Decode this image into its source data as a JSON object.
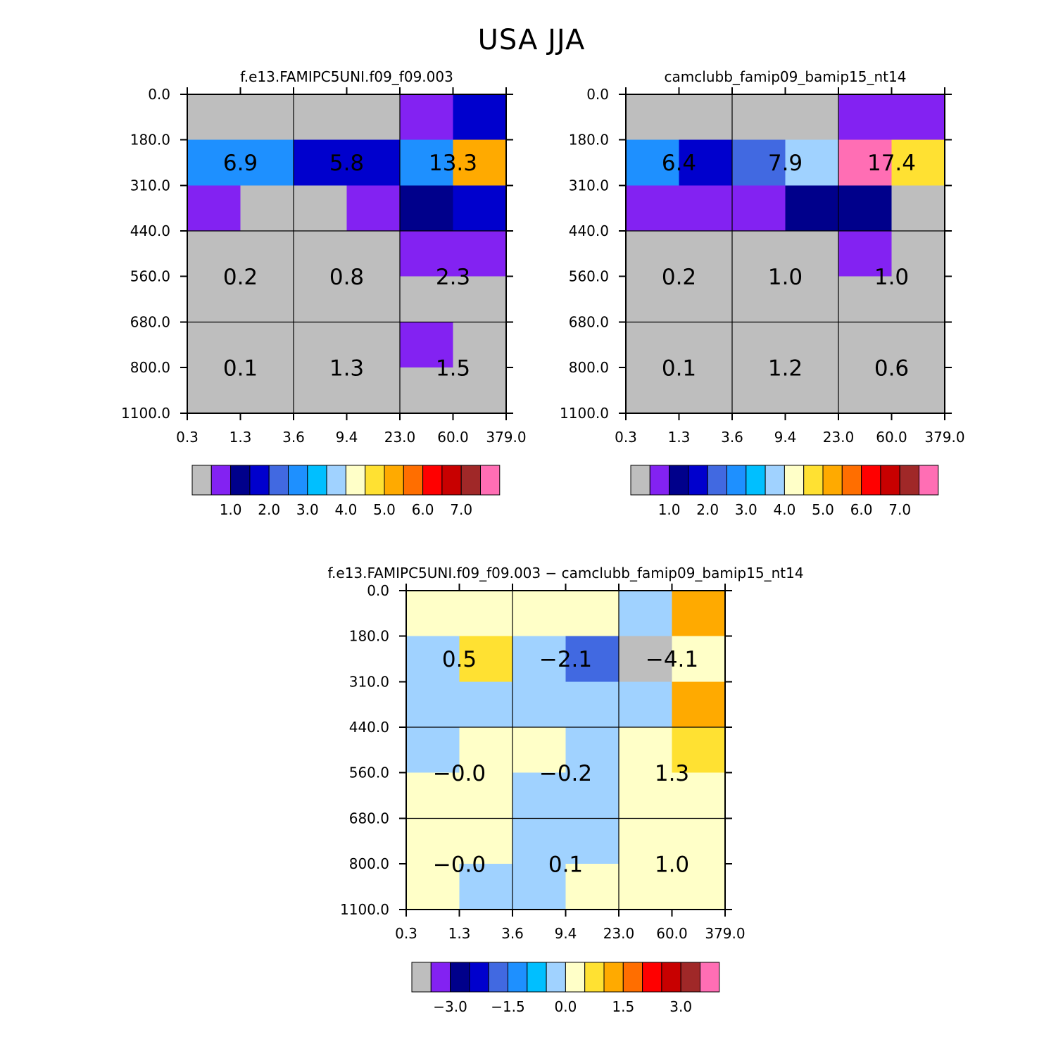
{
  "page_title": "USA JJA",
  "colors": {
    "missing": "#bebebe",
    "palette": [
      "#bebebe",
      "#8322f2",
      "#00008b",
      "#0000cd",
      "#4169e1",
      "#1e90ff",
      "#00bfff",
      "#a0d2ff",
      "#ffffc8",
      "#ffe132",
      "#ffaa00",
      "#ff6e00",
      "#ff0000",
      "#c80000",
      "#a02828",
      "#ff6eb4"
    ]
  },
  "chart_data": [
    {
      "type": "heatmap",
      "title": "f.e13.FAMIPC5UNI.f09_f09.003",
      "x_ticks": [
        "0.3",
        "1.3",
        "3.6",
        "9.4",
        "23.0",
        "60.0",
        "379.0"
      ],
      "y_ticks": [
        "0.0",
        "180.0",
        "310.0",
        "440.0",
        "560.0",
        "680.0",
        "800.0",
        "1100.0"
      ],
      "cell_color_index": [
        [
          0,
          0,
          0,
          0,
          1,
          3
        ],
        [
          5,
          5,
          3,
          3,
          5,
          10
        ],
        [
          1,
          0,
          0,
          1,
          2,
          3
        ],
        [
          0,
          0,
          0,
          0,
          1,
          1
        ],
        [
          0,
          0,
          0,
          0,
          0,
          0
        ],
        [
          0,
          0,
          0,
          0,
          1,
          0
        ],
        [
          0,
          0,
          0,
          0,
          0,
          0
        ]
      ],
      "block_labels": [
        [
          "6.9",
          "5.8",
          "13.3"
        ],
        [
          "0.2",
          "0.8",
          "2.3"
        ],
        [
          "0.1",
          "1.3",
          "1.5"
        ]
      ],
      "colorbar": {
        "n_boxes": 16,
        "labels": [
          "1.0",
          "2.0",
          "3.0",
          "4.0",
          "5.0",
          "6.0",
          "7.0"
        ],
        "label_box_edges": [
          2,
          4,
          6,
          8,
          10,
          12,
          14
        ]
      }
    },
    {
      "type": "heatmap",
      "title": "camclubb_famip09_bamip15_nt14",
      "x_ticks": [
        "0.3",
        "1.3",
        "3.6",
        "9.4",
        "23.0",
        "60.0",
        "379.0"
      ],
      "y_ticks": [
        "0.0",
        "180.0",
        "310.0",
        "440.0",
        "560.0",
        "680.0",
        "800.0",
        "1100.0"
      ],
      "cell_color_index": [
        [
          0,
          0,
          0,
          0,
          1,
          1
        ],
        [
          5,
          3,
          4,
          7,
          15,
          9
        ],
        [
          1,
          1,
          1,
          2,
          2,
          0
        ],
        [
          0,
          0,
          0,
          0,
          1,
          0
        ],
        [
          0,
          0,
          0,
          0,
          0,
          0
        ],
        [
          0,
          0,
          0,
          0,
          0,
          0
        ],
        [
          0,
          0,
          0,
          0,
          0,
          0
        ]
      ],
      "block_labels": [
        [
          "6.4",
          "7.9",
          "17.4"
        ],
        [
          "0.2",
          "1.0",
          "1.0"
        ],
        [
          "0.1",
          "1.2",
          "0.6"
        ]
      ],
      "colorbar": {
        "n_boxes": 16,
        "labels": [
          "1.0",
          "2.0",
          "3.0",
          "4.0",
          "5.0",
          "6.0",
          "7.0"
        ],
        "label_box_edges": [
          2,
          4,
          6,
          8,
          10,
          12,
          14
        ]
      }
    },
    {
      "type": "heatmap",
      "title": "f.e13.FAMIPC5UNI.f09_f09.003 − camclubb_famip09_bamip15_nt14",
      "x_ticks": [
        "0.3",
        "1.3",
        "3.6",
        "9.4",
        "23.0",
        "60.0",
        "379.0"
      ],
      "y_ticks": [
        "0.0",
        "180.0",
        "310.0",
        "440.0",
        "560.0",
        "680.0",
        "800.0",
        "1100.0"
      ],
      "cell_color_index": [
        [
          8,
          8,
          8,
          8,
          7,
          10
        ],
        [
          7,
          9,
          7,
          4,
          0,
          8
        ],
        [
          7,
          7,
          7,
          7,
          7,
          10
        ],
        [
          7,
          8,
          8,
          7,
          8,
          9
        ],
        [
          8,
          8,
          7,
          7,
          8,
          8
        ],
        [
          8,
          8,
          7,
          7,
          8,
          8
        ],
        [
          8,
          7,
          7,
          8,
          8,
          8
        ]
      ],
      "block_labels": [
        [
          "0.5",
          "−2.1",
          "−4.1"
        ],
        [
          "−0.0",
          "−0.2",
          "1.3"
        ],
        [
          "−0.0",
          "0.1",
          "1.0"
        ]
      ],
      "colorbar": {
        "n_boxes": 16,
        "labels": [
          "−3.0",
          "−1.5",
          "0.0",
          "1.5",
          "3.0"
        ],
        "label_box_edges": [
          2,
          5,
          8,
          11,
          14
        ]
      }
    }
  ]
}
